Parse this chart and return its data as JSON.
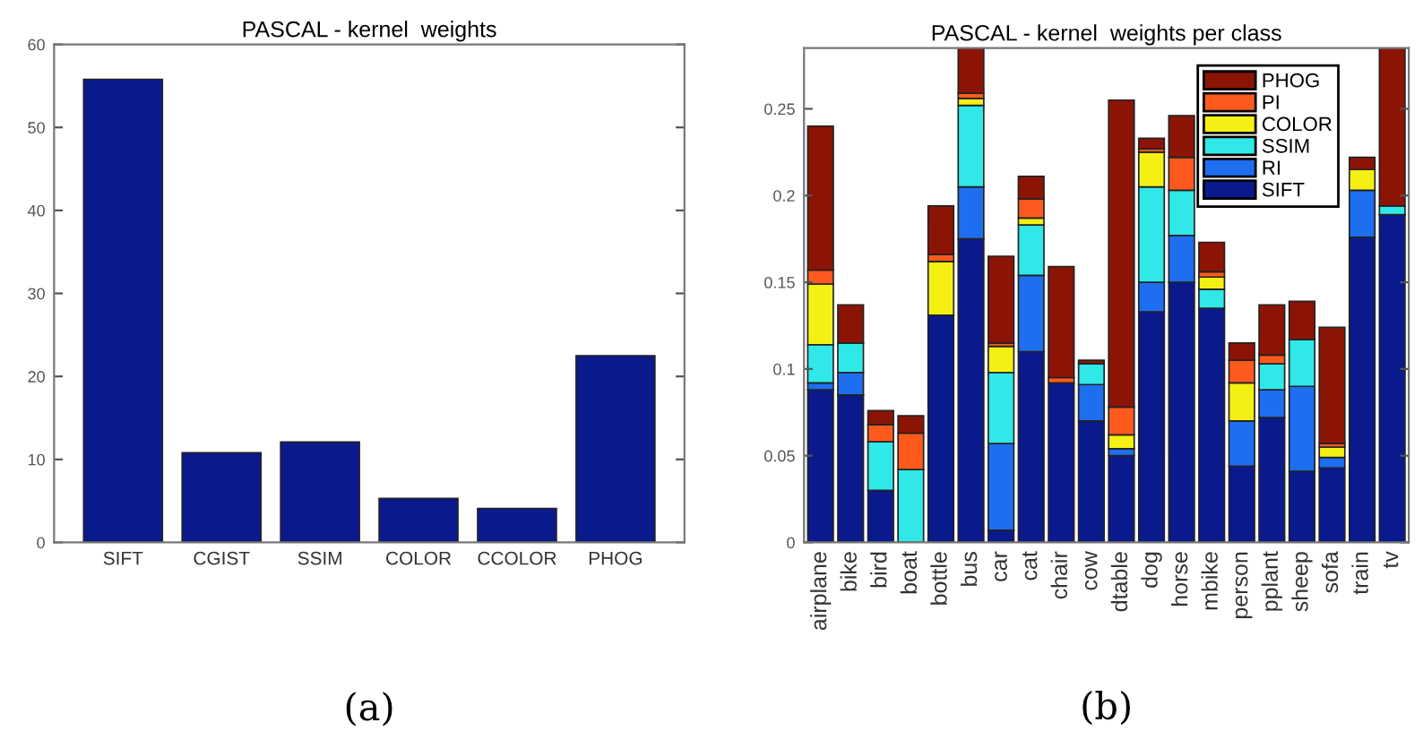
{
  "chart_data": [
    {
      "type": "bar",
      "title": "PASCAL - kernel  weights",
      "categories": [
        "SIFT",
        "CGIST",
        "SSIM",
        "COLOR",
        "CCOLOR",
        "PHOG"
      ],
      "values": [
        55.8,
        10.8,
        12.1,
        5.3,
        4.1,
        22.5
      ],
      "color": "#0a1a8c",
      "ylim": [
        0,
        60
      ],
      "yticks": [
        0,
        10,
        20,
        30,
        40,
        50,
        60
      ],
      "annotations": [
        "(a)"
      ]
    },
    {
      "type": "bar",
      "title": "PASCAL - kernel  weights per class",
      "stacked": true,
      "legend": "top right",
      "categories": [
        "airplane",
        "bike",
        "bird",
        "boat",
        "bottle",
        "bus",
        "car",
        "cat",
        "chair",
        "cow",
        "dtable",
        "dog",
        "horse",
        "mbike",
        "person",
        "pplant",
        "sheep",
        "sofa",
        "train",
        "tv"
      ],
      "series": [
        {
          "name": "SIFT",
          "color": "#0a1a8c",
          "values": [
            0.088,
            0.085,
            0.03,
            null,
            0.131,
            0.175,
            0.007,
            0.11,
            0.092,
            0.07,
            0.05,
            0.133,
            0.15,
            0.135,
            0.044,
            0.072,
            0.041,
            0.043,
            0.176,
            0.189
          ]
        },
        {
          "name": "RI",
          "color": "#1e6ef0",
          "values": [
            0.004,
            0.013,
            0,
            0,
            0,
            0.03,
            0.05,
            0.044,
            0,
            0.021,
            0.004,
            0.017,
            0.027,
            0,
            0.026,
            0.016,
            0.049,
            0.006,
            0.027,
            0
          ]
        },
        {
          "name": "SSIM",
          "color": "#30e8e8",
          "values": [
            0.022,
            0.017,
            0.028,
            0.042,
            0,
            0.047,
            0.041,
            0.029,
            0,
            0.012,
            0,
            0.055,
            0.026,
            0.011,
            0,
            0.015,
            0.027,
            0,
            0,
            0.005
          ]
        },
        {
          "name": "COLOR",
          "color": "#f5f014",
          "values": [
            0.035,
            0,
            null,
            null,
            0.031,
            0.004,
            0.015,
            0.004,
            0,
            0,
            0.008,
            0.02,
            0,
            0.007,
            0.022,
            0,
            0,
            0.006,
            0.012,
            0
          ]
        },
        {
          "name": "PI",
          "color": "#ff5a1e",
          "values": [
            0.008,
            0,
            0.01,
            0.021,
            0.004,
            0.003,
            0.002,
            0.011,
            0.003,
            0,
            0.016,
            0.002,
            0.019,
            0.003,
            0.013,
            0.005,
            0,
            0.002,
            0,
            0
          ]
        },
        {
          "name": "PHOG",
          "color": "#8c1405",
          "values": [
            0.083,
            0.022,
            0.008,
            0.01,
            0.028,
            0.026,
            0.05,
            0.013,
            0.064,
            0.002,
            0.177,
            0.006,
            0.024,
            0.017,
            0.01,
            0.029,
            0.022,
            0.067,
            0.007,
            0.091
          ]
        }
      ],
      "ylim": [
        0,
        0.285
      ],
      "yticks": [
        0,
        0.05,
        0.1,
        0.15,
        0.2,
        0.25
      ],
      "annotations": [
        "(b)"
      ]
    }
  ]
}
